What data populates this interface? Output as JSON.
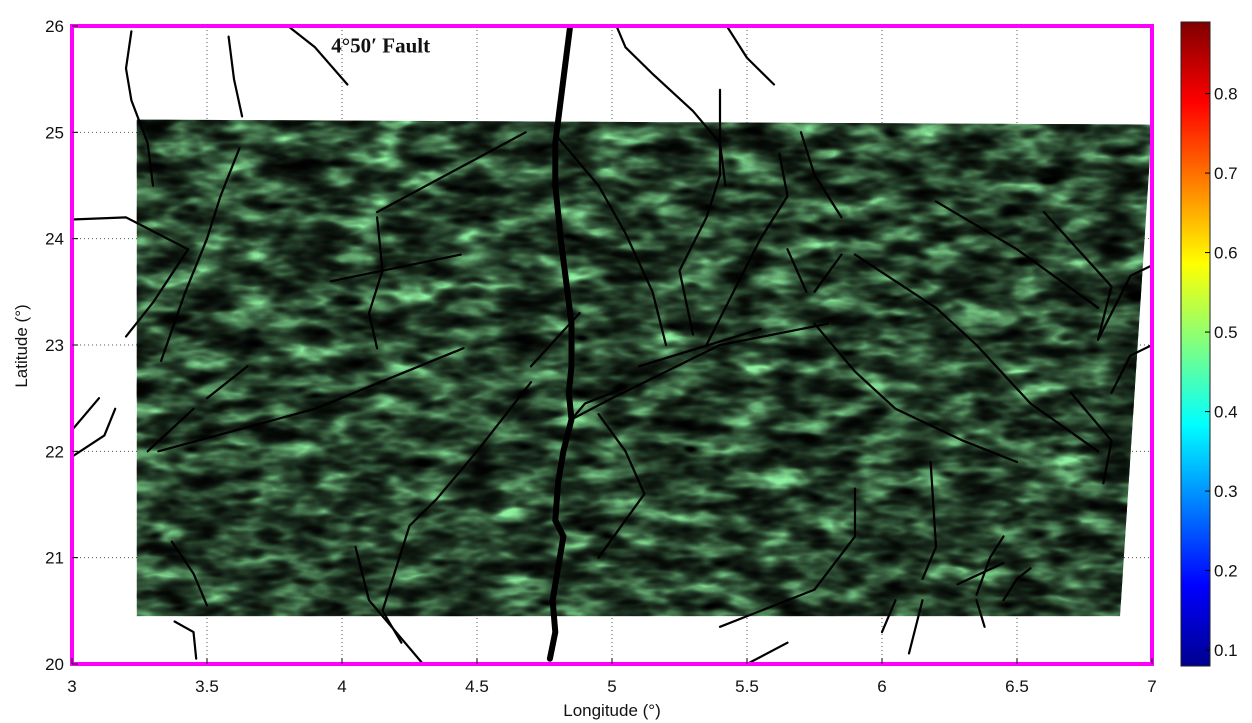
{
  "chart_data": {
    "type": "heatmap",
    "title": "",
    "xlabel": "Longitude (°)",
    "ylabel": "Latitude (°)",
    "xlim": [
      3,
      7
    ],
    "ylim": [
      20,
      26
    ],
    "x_ticks": [
      "3",
      "3.5",
      "4",
      "4.5",
      "5",
      "5.5",
      "6",
      "6.5",
      "7"
    ],
    "y_ticks": [
      "20",
      "21",
      "22",
      "23",
      "24",
      "25",
      "26"
    ],
    "grid": true,
    "colormap": "jet",
    "colorbar": {
      "range": [
        0.08,
        0.89
      ],
      "ticks": [
        "0.1",
        "0.2",
        "0.3",
        "0.4",
        "0.5",
        "0.6",
        "0.7",
        "0.8"
      ]
    },
    "data_extent": {
      "lon": [
        3.24,
        7.0
      ],
      "lat": [
        20.45,
        25.12
      ]
    },
    "annotation": {
      "text": "4°50′ Fault",
      "lon": 3.96,
      "lat": 25.75
    },
    "frame_color": "#ff00ff",
    "main_fault": [
      [
        4.85,
        26.1
      ],
      [
        4.83,
        25.7
      ],
      [
        4.81,
        25.3
      ],
      [
        4.79,
        24.9
      ],
      [
        4.79,
        24.5
      ],
      [
        4.81,
        24.0
      ],
      [
        4.83,
        23.6
      ],
      [
        4.85,
        23.2
      ],
      [
        4.85,
        22.8
      ],
      [
        4.84,
        22.55
      ],
      [
        4.85,
        22.3
      ],
      [
        4.82,
        22.0
      ],
      [
        4.8,
        21.7
      ],
      [
        4.79,
        21.35
      ],
      [
        4.82,
        21.2
      ],
      [
        4.8,
        20.9
      ],
      [
        4.78,
        20.6
      ],
      [
        4.79,
        20.3
      ],
      [
        4.77,
        20.05
      ]
    ],
    "faults": [
      [
        [
          3.22,
          25.95
        ],
        [
          3.2,
          25.6
        ],
        [
          3.22,
          25.3
        ],
        [
          3.28,
          24.9
        ],
        [
          3.3,
          24.5
        ]
      ],
      [
        [
          3.58,
          25.9
        ],
        [
          3.6,
          25.5
        ],
        [
          3.63,
          25.15
        ]
      ],
      [
        [
          3.62,
          24.85
        ],
        [
          3.55,
          24.4
        ],
        [
          3.5,
          24.0
        ],
        [
          3.42,
          23.5
        ],
        [
          3.33,
          22.85
        ]
      ],
      [
        [
          3.0,
          24.18
        ],
        [
          3.2,
          24.2
        ],
        [
          3.43,
          23.9
        ]
      ],
      [
        [
          3.43,
          23.9
        ],
        [
          3.3,
          23.4
        ],
        [
          3.2,
          23.08
        ]
      ],
      [
        [
          3.75,
          26.1
        ],
        [
          3.9,
          25.8
        ],
        [
          4.02,
          25.45
        ]
      ],
      [
        [
          4.13,
          24.25
        ],
        [
          4.68,
          25.0
        ]
      ],
      [
        [
          4.13,
          24.2
        ],
        [
          4.15,
          23.7
        ],
        [
          4.1,
          23.3
        ],
        [
          4.13,
          22.97
        ]
      ],
      [
        [
          3.96,
          23.6
        ],
        [
          4.44,
          23.85
        ]
      ],
      [
        [
          3.5,
          22.5
        ],
        [
          3.65,
          22.8
        ]
      ],
      [
        [
          3.28,
          22.0
        ],
        [
          3.45,
          22.4
        ]
      ],
      [
        [
          3.32,
          22.0
        ],
        [
          3.9,
          22.4
        ],
        [
          4.45,
          22.97
        ]
      ],
      [
        [
          3.0,
          22.2
        ],
        [
          3.1,
          22.5
        ]
      ],
      [
        [
          3.0,
          21.95
        ],
        [
          3.12,
          22.15
        ],
        [
          3.16,
          22.4
        ]
      ],
      [
        [
          3.37,
          21.15
        ],
        [
          3.45,
          20.85
        ],
        [
          3.5,
          20.55
        ]
      ],
      [
        [
          3.38,
          20.4
        ],
        [
          3.45,
          20.3
        ],
        [
          3.46,
          20.05
        ]
      ],
      [
        [
          4.05,
          21.1
        ],
        [
          4.1,
          20.6
        ],
        [
          4.2,
          20.3
        ],
        [
          4.3,
          20.0
        ]
      ],
      [
        [
          4.7,
          22.65
        ],
        [
          4.5,
          22.0
        ],
        [
          4.35,
          21.55
        ],
        [
          4.25,
          21.3
        ],
        [
          4.2,
          20.9
        ],
        [
          4.15,
          20.5
        ],
        [
          4.22,
          20.2
        ]
      ],
      [
        [
          4.88,
          23.3
        ],
        [
          4.7,
          22.8
        ]
      ],
      [
        [
          5.0,
          26.1
        ],
        [
          5.05,
          25.8
        ],
        [
          5.15,
          25.55
        ],
        [
          5.3,
          25.2
        ],
        [
          5.4,
          24.9
        ],
        [
          5.42,
          24.5
        ]
      ],
      [
        [
          5.4,
          26.1
        ],
        [
          5.5,
          25.7
        ],
        [
          5.6,
          25.45
        ]
      ],
      [
        [
          4.8,
          24.95
        ],
        [
          4.95,
          24.5
        ],
        [
          5.05,
          24.05
        ],
        [
          5.15,
          23.5
        ],
        [
          5.2,
          23.0
        ]
      ],
      [
        [
          5.3,
          23.1
        ],
        [
          5.25,
          23.7
        ],
        [
          5.35,
          24.2
        ],
        [
          5.4,
          24.6
        ],
        [
          5.4,
          25.4
        ]
      ],
      [
        [
          5.35,
          23.0
        ],
        [
          5.45,
          23.5
        ],
        [
          5.55,
          24.0
        ],
        [
          5.65,
          24.4
        ],
        [
          5.62,
          24.8
        ]
      ],
      [
        [
          5.7,
          25.0
        ],
        [
          5.75,
          24.6
        ],
        [
          5.85,
          24.2
        ]
      ],
      [
        [
          5.65,
          23.9
        ],
        [
          5.72,
          23.5
        ]
      ],
      [
        [
          5.75,
          23.5
        ],
        [
          5.85,
          23.85
        ]
      ],
      [
        [
          5.9,
          23.85
        ],
        [
          6.2,
          23.35
        ],
        [
          6.35,
          23.0
        ],
        [
          6.55,
          22.45
        ],
        [
          6.8,
          22.0
        ]
      ],
      [
        [
          5.75,
          23.2
        ],
        [
          5.9,
          22.75
        ],
        [
          6.05,
          22.4
        ],
        [
          6.3,
          22.1
        ],
        [
          6.5,
          21.9
        ]
      ],
      [
        [
          5.8,
          23.2
        ],
        [
          5.4,
          23.0
        ],
        [
          5.0,
          22.5
        ],
        [
          4.85,
          22.3
        ]
      ],
      [
        [
          4.85,
          22.3
        ],
        [
          4.9,
          22.45
        ],
        [
          5.05,
          22.6
        ]
      ],
      [
        [
          4.95,
          22.35
        ],
        [
          5.05,
          22.0
        ],
        [
          5.12,
          21.6
        ],
        [
          4.95,
          21.0
        ]
      ],
      [
        [
          5.55,
          23.15
        ],
        [
          5.1,
          22.8
        ]
      ],
      [
        [
          6.2,
          24.35
        ],
        [
          6.5,
          23.9
        ],
        [
          6.8,
          23.35
        ]
      ],
      [
        [
          6.6,
          24.25
        ],
        [
          6.85,
          23.55
        ],
        [
          6.8,
          23.05
        ]
      ],
      [
        [
          6.8,
          23.05
        ],
        [
          6.92,
          23.65
        ],
        [
          7.0,
          23.75
        ]
      ],
      [
        [
          6.85,
          22.55
        ],
        [
          6.92,
          22.9
        ],
        [
          7.0,
          23.0
        ]
      ],
      [
        [
          6.7,
          22.55
        ],
        [
          6.85,
          22.1
        ],
        [
          6.82,
          21.7
        ]
      ],
      [
        [
          6.15,
          20.8
        ],
        [
          6.2,
          21.1
        ],
        [
          6.18,
          21.9
        ]
      ],
      [
        [
          6.35,
          20.65
        ],
        [
          6.4,
          21.0
        ],
        [
          6.45,
          21.2
        ]
      ],
      [
        [
          6.28,
          20.75
        ],
        [
          6.45,
          20.95
        ]
      ],
      [
        [
          6.45,
          20.6
        ],
        [
          6.5,
          20.8
        ],
        [
          6.55,
          20.9
        ]
      ],
      [
        [
          6.15,
          20.6
        ],
        [
          6.12,
          20.3
        ],
        [
          6.1,
          20.1
        ]
      ],
      [
        [
          6.0,
          20.3
        ],
        [
          6.05,
          20.6
        ]
      ],
      [
        [
          6.35,
          20.6
        ],
        [
          6.38,
          20.35
        ]
      ],
      [
        [
          5.4,
          20.35
        ],
        [
          5.75,
          20.7
        ],
        [
          5.9,
          21.2
        ],
        [
          5.9,
          21.65
        ]
      ],
      [
        [
          5.5,
          20.0
        ],
        [
          5.65,
          20.2
        ]
      ]
    ]
  }
}
